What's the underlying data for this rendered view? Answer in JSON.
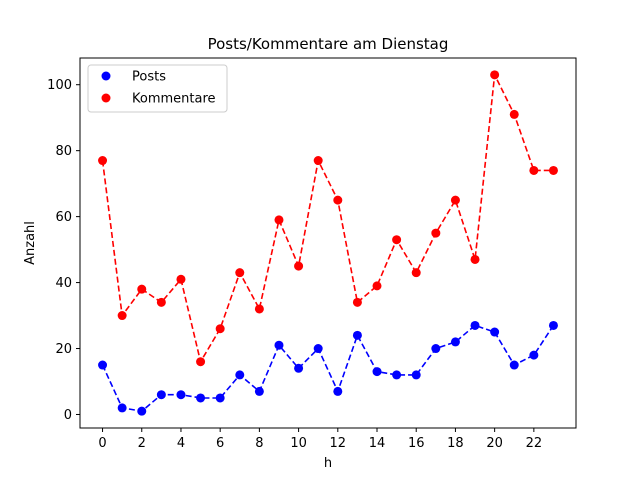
{
  "chart_data": {
    "type": "line",
    "title": "Posts/Kommentare am Dienstag",
    "xlabel": "h",
    "ylabel": "Anzahl",
    "x": [
      0,
      1,
      2,
      3,
      4,
      5,
      6,
      7,
      8,
      9,
      10,
      11,
      12,
      13,
      14,
      15,
      16,
      17,
      18,
      19,
      20,
      21,
      22,
      23
    ],
    "xlim": [
      -1.15,
      24.15
    ],
    "ylim": [
      -4.1,
      108.1
    ],
    "xticks": [
      0,
      2,
      4,
      6,
      8,
      10,
      12,
      14,
      16,
      18,
      20,
      22
    ],
    "yticks": [
      0,
      20,
      40,
      60,
      80,
      100
    ],
    "grid": false,
    "legend_position": "top-left",
    "series": [
      {
        "name": "Posts",
        "color": "#0000ff",
        "line_style": "dashed",
        "marker": "circle",
        "values": [
          15,
          2,
          1,
          6,
          6,
          5,
          5,
          12,
          7,
          21,
          14,
          20,
          7,
          24,
          13,
          12,
          12,
          20,
          22,
          27,
          25,
          15,
          18,
          27
        ]
      },
      {
        "name": "Kommentare",
        "color": "#ff0000",
        "line_style": "dashed",
        "marker": "circle",
        "values": [
          77,
          30,
          38,
          34,
          41,
          16,
          26,
          43,
          32,
          59,
          45,
          77,
          65,
          34,
          39,
          53,
          43,
          55,
          65,
          47,
          103,
          91,
          74,
          74
        ]
      }
    ]
  }
}
